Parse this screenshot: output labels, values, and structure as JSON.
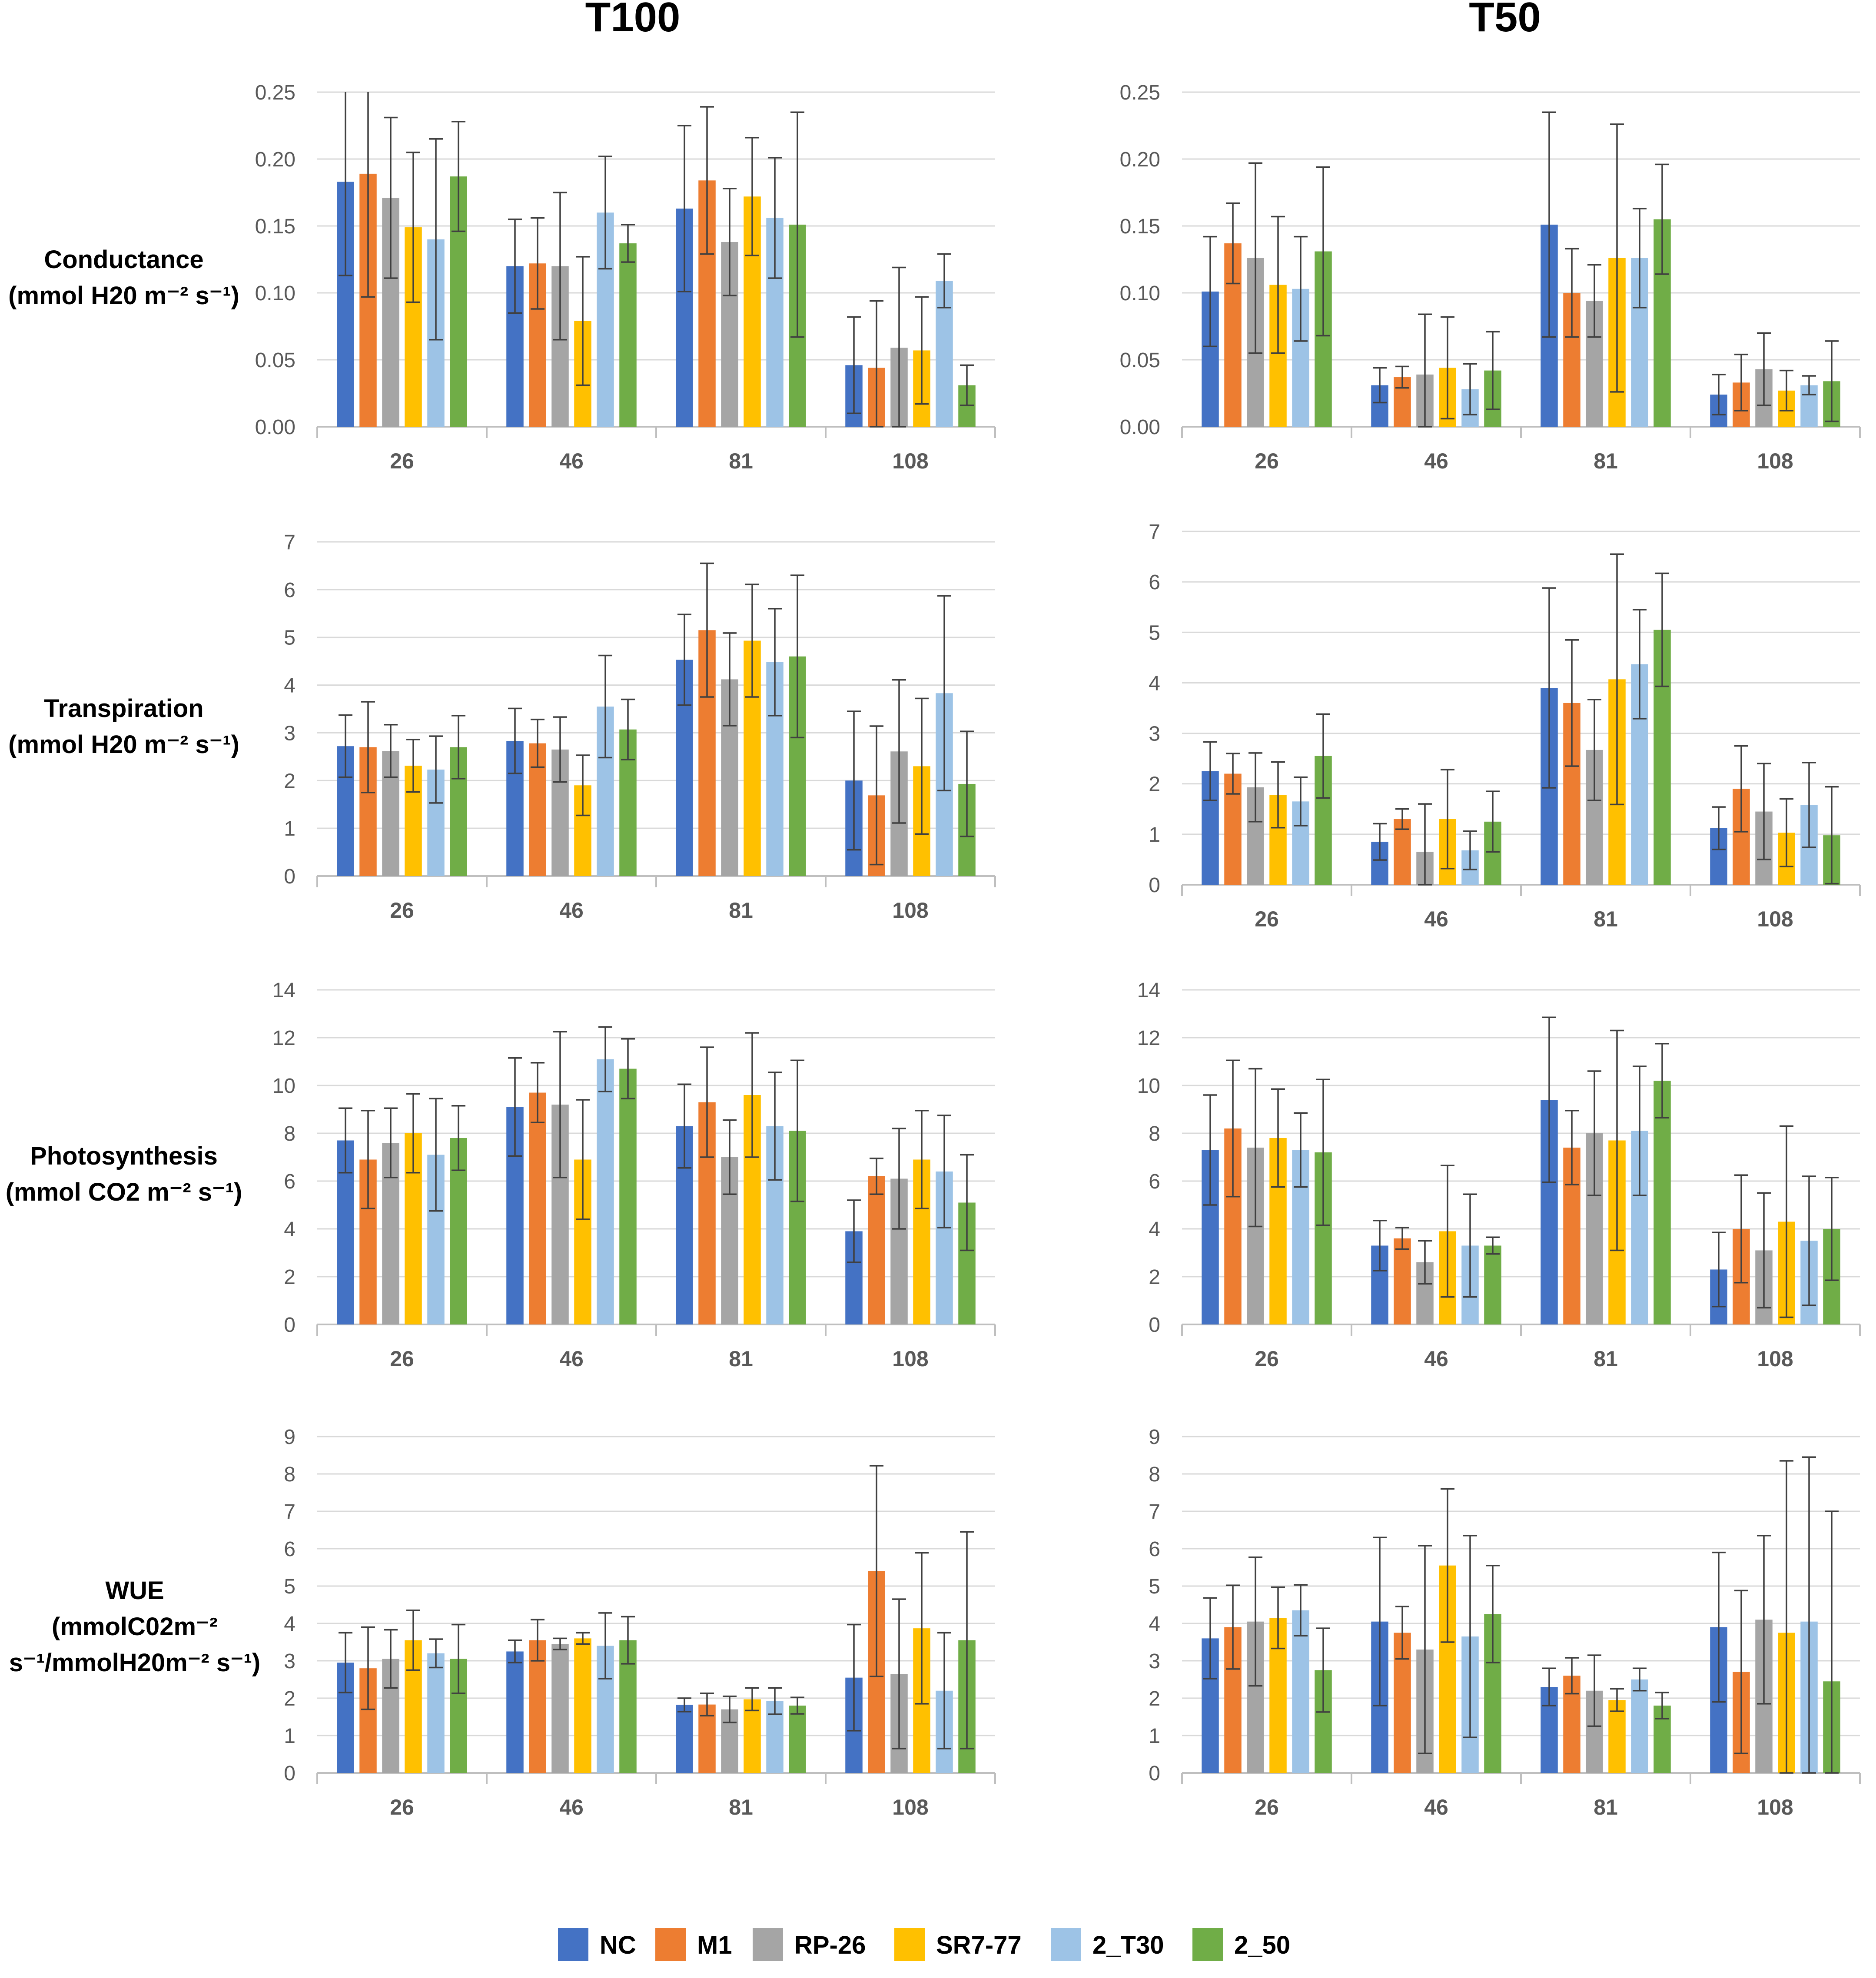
{
  "column_titles": [
    "T100",
    "T50"
  ],
  "row_labels": [
    {
      "lines": [
        "Conductance",
        "(mmol H20 m⁻² s⁻¹)"
      ]
    },
    {
      "lines": [
        "Transpiration",
        "(mmol H20 m⁻² s⁻¹)"
      ]
    },
    {
      "lines": [
        "Photosynthesis",
        "(mmol CO2 m⁻² s⁻¹)"
      ]
    },
    {
      "lines": [
        "WUE",
        "(mmolC02m⁻²",
        "s⁻¹/mmolH20m⁻² s⁻¹)"
      ]
    }
  ],
  "legend": [
    {
      "name": "NC",
      "color": "#4472C4"
    },
    {
      "name": "M1",
      "color": "#ED7D31"
    },
    {
      "name": "RP-26",
      "color": "#A5A5A5"
    },
    {
      "name": "SR7-77",
      "color": "#FFC000"
    },
    {
      "name": "2_T30",
      "color": "#9DC3E6"
    },
    {
      "name": "2_50",
      "color": "#70AD47"
    }
  ],
  "chart_data": [
    {
      "id": "conductance-t100",
      "type": "bar",
      "title": "T100",
      "ylabel": "Conductance (mmol H20 m⁻² s⁻¹)",
      "categories": [
        "26",
        "46",
        "81",
        "108"
      ],
      "ylim": [
        0,
        0.25
      ],
      "yticks": [
        "0.00",
        "0.05",
        "0.10",
        "0.15",
        "0.20",
        "0.25"
      ],
      "series": [
        {
          "name": "NC",
          "values": [
            0.183,
            0.12,
            0.163,
            0.046
          ],
          "errors": [
            0.07,
            0.035,
            0.062,
            0.036
          ]
        },
        {
          "name": "M1",
          "values": [
            0.189,
            0.122,
            0.184,
            0.044
          ],
          "errors": [
            0.092,
            0.034,
            0.055,
            0.05
          ]
        },
        {
          "name": "RP-26",
          "values": [
            0.171,
            0.12,
            0.138,
            0.059
          ],
          "errors": [
            0.06,
            0.055,
            0.04,
            0.06
          ]
        },
        {
          "name": "SR7-77",
          "values": [
            0.149,
            0.079,
            0.172,
            0.057
          ],
          "errors": [
            0.056,
            0.048,
            0.044,
            0.04
          ]
        },
        {
          "name": "2_T30",
          "values": [
            0.14,
            0.16,
            0.156,
            0.109
          ],
          "errors": [
            0.075,
            0.042,
            0.045,
            0.02
          ]
        },
        {
          "name": "2_50",
          "values": [
            0.187,
            0.137,
            0.151,
            0.031
          ],
          "errors": [
            0.041,
            0.014,
            0.084,
            0.015
          ]
        }
      ]
    },
    {
      "id": "conductance-t50",
      "type": "bar",
      "title": "T50",
      "ylabel": "Conductance (mmol H20 m⁻² s⁻¹)",
      "categories": [
        "26",
        "46",
        "81",
        "108"
      ],
      "ylim": [
        0,
        0.25
      ],
      "yticks": [
        "0.00",
        "0.05",
        "0.10",
        "0.15",
        "0.20",
        "0.25"
      ],
      "series": [
        {
          "name": "NC",
          "values": [
            0.101,
            0.031,
            0.151,
            0.024
          ],
          "errors": [
            0.041,
            0.013,
            0.084,
            0.015
          ]
        },
        {
          "name": "M1",
          "values": [
            0.137,
            0.037,
            0.1,
            0.033
          ],
          "errors": [
            0.03,
            0.008,
            0.033,
            0.021
          ]
        },
        {
          "name": "RP-26",
          "values": [
            0.126,
            0.039,
            0.094,
            0.043
          ],
          "errors": [
            0.071,
            0.045,
            0.027,
            0.027
          ]
        },
        {
          "name": "SR7-77",
          "values": [
            0.106,
            0.044,
            0.126,
            0.027
          ],
          "errors": [
            0.051,
            0.038,
            0.1,
            0.015
          ]
        },
        {
          "name": "2_T30",
          "values": [
            0.103,
            0.028,
            0.126,
            0.031
          ],
          "errors": [
            0.039,
            0.019,
            0.037,
            0.007
          ]
        },
        {
          "name": "2_50",
          "values": [
            0.131,
            0.042,
            0.155,
            0.034
          ],
          "errors": [
            0.063,
            0.029,
            0.041,
            0.03
          ]
        }
      ]
    },
    {
      "id": "transpiration-t100",
      "type": "bar",
      "title": "T100",
      "ylabel": "Transpiration (mmol H20 m⁻² s⁻¹)",
      "categories": [
        "26",
        "46",
        "81",
        "108"
      ],
      "ylim": [
        0,
        7
      ],
      "yticks": [
        "0",
        "1",
        "2",
        "3",
        "4",
        "5",
        "6",
        "7"
      ],
      "series": [
        {
          "name": "NC",
          "values": [
            2.72,
            2.83,
            4.53,
            2.0
          ],
          "errors": [
            0.65,
            0.68,
            0.95,
            1.45
          ]
        },
        {
          "name": "M1",
          "values": [
            2.7,
            2.78,
            5.15,
            1.69
          ],
          "errors": [
            0.95,
            0.5,
            1.4,
            1.45
          ]
        },
        {
          "name": "RP-26",
          "values": [
            2.62,
            2.65,
            4.12,
            2.61
          ],
          "errors": [
            0.55,
            0.68,
            0.97,
            1.5
          ]
        },
        {
          "name": "SR7-77",
          "values": [
            2.31,
            1.9,
            4.93,
            2.3
          ],
          "errors": [
            0.55,
            0.63,
            1.18,
            1.42
          ]
        },
        {
          "name": "2_T30",
          "values": [
            2.23,
            3.55,
            4.48,
            3.83
          ],
          "errors": [
            0.7,
            1.07,
            1.12,
            2.04
          ]
        },
        {
          "name": "2_50",
          "values": [
            2.7,
            3.07,
            4.6,
            1.93
          ],
          "errors": [
            0.66,
            0.63,
            1.7,
            1.1
          ]
        }
      ]
    },
    {
      "id": "transpiration-t50",
      "type": "bar",
      "title": "T50",
      "ylabel": "Transpiration (mmol H20 m⁻² s⁻¹)",
      "categories": [
        "26",
        "46",
        "81",
        "108"
      ],
      "ylim": [
        0,
        7
      ],
      "yticks": [
        "0",
        "1",
        "2",
        "3",
        "4",
        "5",
        "6",
        "7"
      ],
      "series": [
        {
          "name": "NC",
          "values": [
            2.25,
            0.85,
            3.9,
            1.12
          ],
          "errors": [
            0.58,
            0.36,
            1.98,
            0.42
          ]
        },
        {
          "name": "M1",
          "values": [
            2.2,
            1.3,
            3.6,
            1.9
          ],
          "errors": [
            0.4,
            0.2,
            1.25,
            0.85
          ]
        },
        {
          "name": "RP-26",
          "values": [
            1.93,
            0.65,
            2.67,
            1.45
          ],
          "errors": [
            0.68,
            0.95,
            1.0,
            0.95
          ]
        },
        {
          "name": "SR7-77",
          "values": [
            1.78,
            1.3,
            4.07,
            1.03
          ],
          "errors": [
            0.65,
            0.98,
            2.48,
            0.67
          ]
        },
        {
          "name": "2_T30",
          "values": [
            1.65,
            0.68,
            4.37,
            1.58
          ],
          "errors": [
            0.48,
            0.38,
            1.08,
            0.84
          ]
        },
        {
          "name": "2_50",
          "values": [
            2.55,
            1.25,
            5.05,
            0.98
          ],
          "errors": [
            0.83,
            0.6,
            1.12,
            0.96
          ]
        }
      ]
    },
    {
      "id": "photosynthesis-t100",
      "type": "bar",
      "title": "T100",
      "ylabel": "Photosynthesis (mmol CO2 m⁻² s⁻¹)",
      "categories": [
        "26",
        "46",
        "81",
        "108"
      ],
      "ylim": [
        0,
        14
      ],
      "yticks": [
        "0",
        "2",
        "4",
        "6",
        "8",
        "10",
        "12",
        "14"
      ],
      "series": [
        {
          "name": "NC",
          "values": [
            7.7,
            9.1,
            8.3,
            3.9
          ],
          "errors": [
            1.35,
            2.05,
            1.75,
            1.3
          ]
        },
        {
          "name": "M1",
          "values": [
            6.9,
            9.7,
            9.3,
            6.2
          ],
          "errors": [
            2.05,
            1.25,
            2.3,
            0.75
          ]
        },
        {
          "name": "RP-26",
          "values": [
            7.6,
            9.2,
            7.0,
            6.1
          ],
          "errors": [
            1.45,
            3.05,
            1.55,
            2.1
          ]
        },
        {
          "name": "SR7-77",
          "values": [
            8.0,
            6.9,
            9.6,
            6.9
          ],
          "errors": [
            1.65,
            2.5,
            2.6,
            2.05
          ]
        },
        {
          "name": "2_T30",
          "values": [
            7.1,
            11.1,
            8.3,
            6.4
          ],
          "errors": [
            2.35,
            1.35,
            2.25,
            2.35
          ]
        },
        {
          "name": "2_50",
          "values": [
            7.8,
            10.7,
            8.1,
            5.1
          ],
          "errors": [
            1.35,
            1.25,
            2.95,
            2.0
          ]
        }
      ]
    },
    {
      "id": "photosynthesis-t50",
      "type": "bar",
      "title": "T50",
      "ylabel": "Photosynthesis (mmol CO2 m⁻² s⁻¹)",
      "categories": [
        "26",
        "46",
        "81",
        "108"
      ],
      "ylim": [
        0,
        14
      ],
      "yticks": [
        "0",
        "2",
        "4",
        "6",
        "8",
        "10",
        "12",
        "14"
      ],
      "series": [
        {
          "name": "NC",
          "values": [
            7.3,
            3.3,
            9.4,
            2.3
          ],
          "errors": [
            2.3,
            1.05,
            3.45,
            1.55
          ]
        },
        {
          "name": "M1",
          "values": [
            8.2,
            3.6,
            7.4,
            4.0
          ],
          "errors": [
            2.85,
            0.45,
            1.55,
            2.25
          ]
        },
        {
          "name": "RP-26",
          "values": [
            7.4,
            2.6,
            8.0,
            3.1
          ],
          "errors": [
            3.3,
            0.9,
            2.6,
            2.4
          ]
        },
        {
          "name": "SR7-77",
          "values": [
            7.8,
            3.9,
            7.7,
            4.3
          ],
          "errors": [
            2.05,
            2.75,
            4.6,
            4.0
          ]
        },
        {
          "name": "2_T30",
          "values": [
            7.3,
            3.3,
            8.1,
            3.5
          ],
          "errors": [
            1.55,
            2.15,
            2.7,
            2.7
          ]
        },
        {
          "name": "2_50",
          "values": [
            7.2,
            3.3,
            10.2,
            4.0
          ],
          "errors": [
            3.05,
            0.35,
            1.55,
            2.15
          ]
        }
      ]
    },
    {
      "id": "wue-t100",
      "type": "bar",
      "title": "T100",
      "ylabel": "WUE (mmolC02m⁻² s⁻¹/mmolH20m⁻² s⁻¹)",
      "categories": [
        "26",
        "46",
        "81",
        "108"
      ],
      "ylim": [
        0,
        9
      ],
      "yticks": [
        "0",
        "1",
        "2",
        "3",
        "4",
        "5",
        "6",
        "7",
        "8",
        "9"
      ],
      "series": [
        {
          "name": "NC",
          "values": [
            2.95,
            3.25,
            1.82,
            2.55
          ],
          "errors": [
            0.8,
            0.3,
            0.18,
            1.42
          ]
        },
        {
          "name": "M1",
          "values": [
            2.8,
            3.55,
            1.83,
            5.4
          ],
          "errors": [
            1.1,
            0.55,
            0.3,
            2.82
          ]
        },
        {
          "name": "RP-26",
          "values": [
            3.05,
            3.45,
            1.7,
            2.65
          ],
          "errors": [
            0.78,
            0.15,
            0.35,
            2.0
          ]
        },
        {
          "name": "SR7-77",
          "values": [
            3.55,
            3.6,
            1.97,
            3.87
          ],
          "errors": [
            0.8,
            0.15,
            0.3,
            2.02
          ]
        },
        {
          "name": "2_T30",
          "values": [
            3.2,
            3.4,
            1.92,
            2.2
          ],
          "errors": [
            0.38,
            0.88,
            0.35,
            1.55
          ]
        },
        {
          "name": "2_50",
          "values": [
            3.05,
            3.55,
            1.8,
            3.55
          ],
          "errors": [
            0.92,
            0.63,
            0.22,
            2.9
          ]
        }
      ]
    },
    {
      "id": "wue-t50",
      "type": "bar",
      "title": "T50",
      "ylabel": "WUE (mmolC02m⁻² s⁻¹/mmolH20m⁻² s⁻¹)",
      "categories": [
        "26",
        "46",
        "81",
        "108"
      ],
      "ylim": [
        0,
        9
      ],
      "yticks": [
        "0",
        "1",
        "2",
        "3",
        "4",
        "5",
        "6",
        "7",
        "8",
        "9"
      ],
      "series": [
        {
          "name": "NC",
          "values": [
            3.6,
            4.05,
            2.3,
            3.9
          ],
          "errors": [
            1.08,
            2.25,
            0.5,
            2.0
          ]
        },
        {
          "name": "M1",
          "values": [
            3.9,
            3.75,
            2.6,
            2.7
          ],
          "errors": [
            1.12,
            0.7,
            0.48,
            2.18
          ]
        },
        {
          "name": "RP-26",
          "values": [
            4.05,
            3.3,
            2.2,
            4.1
          ],
          "errors": [
            1.72,
            2.78,
            0.95,
            2.25
          ]
        },
        {
          "name": "SR7-77",
          "values": [
            4.15,
            5.55,
            1.95,
            3.75
          ],
          "errors": [
            0.82,
            2.05,
            0.3,
            4.6
          ]
        },
        {
          "name": "2_T30",
          "values": [
            4.35,
            3.65,
            2.5,
            4.05
          ],
          "errors": [
            0.68,
            2.7,
            0.3,
            4.4
          ]
        },
        {
          "name": "2_50",
          "values": [
            2.75,
            4.25,
            1.8,
            2.45
          ],
          "errors": [
            1.12,
            1.3,
            0.35,
            4.55
          ]
        }
      ]
    }
  ]
}
